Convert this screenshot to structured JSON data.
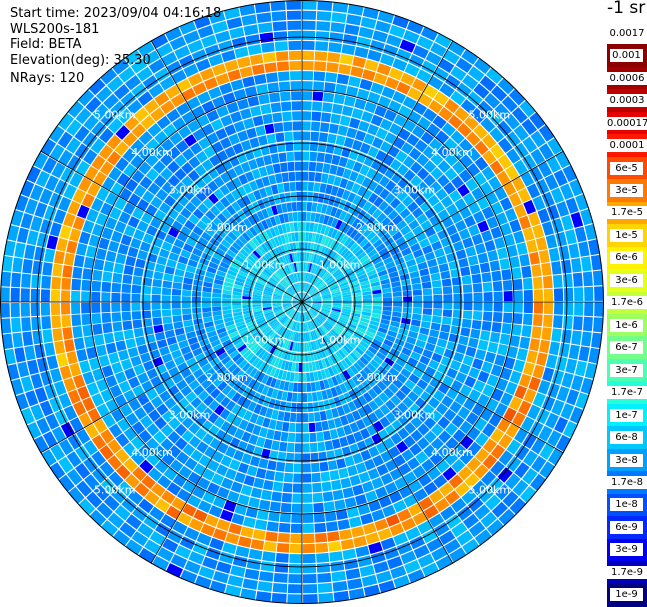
{
  "info": {
    "start_time": "Start time: 2023/09/04 04:16:18",
    "instrument": "WLS200s-181",
    "field": "Field: BETA",
    "elevation": "Elevation(deg): 35.30",
    "nrays": "NRays: 120"
  },
  "chart_data": {
    "type": "heatmap",
    "projection": "polar",
    "field": "BETA",
    "rays": 120,
    "elevation_deg": 35.3,
    "range_rings": [
      {
        "label": "1.00km",
        "range_km": 1.0
      },
      {
        "label": "2.00km",
        "range_km": 2.0
      },
      {
        "label": "3.00km",
        "range_km": 3.0
      },
      {
        "label": "4.00km",
        "range_km": 4.0
      },
      {
        "label": "5.00km",
        "range_km": 5.0
      }
    ],
    "max_range_km": 5.7,
    "ring_label_angles_deg": [
      -45,
      45,
      135,
      -135
    ],
    "spokes_deg": [
      0,
      30,
      60,
      90,
      120,
      150,
      180,
      210,
      240,
      270,
      300,
      330
    ],
    "high_beta_band_km": [
      4.3,
      4.8
    ],
    "colorbar": {
      "unit": "-1 sr",
      "ticks": [
        "0.0017",
        "0.001",
        "0.0006",
        "0.0003",
        "0.00017",
        "0.0001",
        "6e-5",
        "3e-5",
        "1.7e-5",
        "1e-5",
        "6e-6",
        "3e-6",
        "1.7e-6",
        "1e-6",
        "6e-7",
        "3e-7",
        "1.7e-7",
        "1e-7",
        "6e-8",
        "3e-8",
        "1.7e-8",
        "1e-8",
        "6e-9",
        "3e-9",
        "1.7e-9",
        "1e-9"
      ],
      "colors": [
        "#ffffff",
        "#8b0000",
        "#a20000",
        "#c10000",
        "#e60000",
        "#ff1800",
        "#ff4a00",
        "#ff7a00",
        "#ffa800",
        "#ffd400",
        "#fff200",
        "#e4ff1a",
        "#c4ff3a",
        "#9cff62",
        "#74ff8a",
        "#4cffb2",
        "#24ffda",
        "#00f0ff",
        "#00c8ff",
        "#00a0ff",
        "#0078ff",
        "#0050ff",
        "#0028ff",
        "#0000f0",
        "#0000b8",
        "#000080"
      ]
    }
  }
}
